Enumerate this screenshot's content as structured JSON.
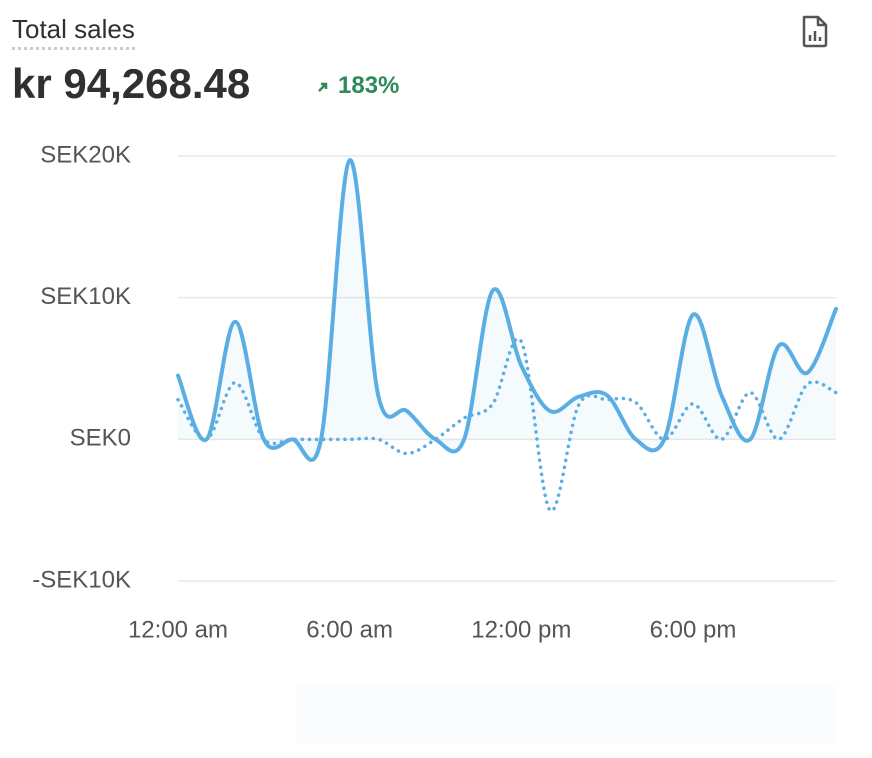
{
  "header": {
    "title": "Total sales",
    "value": "kr 94,268.48",
    "change": "183%"
  },
  "chart_data": {
    "type": "line",
    "categories": [
      "12:00 am",
      null,
      null,
      null,
      null,
      null,
      "6:00 am",
      null,
      null,
      null,
      null,
      null,
      "12:00 pm",
      null,
      null,
      null,
      null,
      null,
      "6:00 pm",
      null,
      null,
      null,
      null,
      null
    ],
    "series": [
      {
        "color": "#5aaee3",
        "style": "solid",
        "values": [
          4500,
          0,
          8300,
          0,
          0,
          0,
          19700,
          3100,
          2000,
          0,
          0,
          10500,
          5200,
          2000,
          3000,
          3100,
          0,
          0,
          8800,
          3100,
          0,
          6600,
          4700,
          9200
        ]
      },
      {
        "color": "#5aaee3",
        "style": "dotted",
        "values": [
          2800,
          0,
          4000,
          0,
          0,
          0,
          0,
          0,
          -1000,
          0,
          1500,
          2500,
          6900,
          -5000,
          2400,
          2800,
          2600,
          0,
          2500,
          0,
          3300,
          0,
          3900,
          3300
        ]
      }
    ],
    "ylim": [
      -10000,
      20000
    ],
    "yticks": [
      {
        "value": -10000,
        "label": "-SEK10K"
      },
      {
        "value": 0,
        "label": "SEK0"
      },
      {
        "value": 10000,
        "label": "SEK10K"
      },
      {
        "value": 20000,
        "label": "SEK20K"
      }
    ],
    "grid": true
  }
}
